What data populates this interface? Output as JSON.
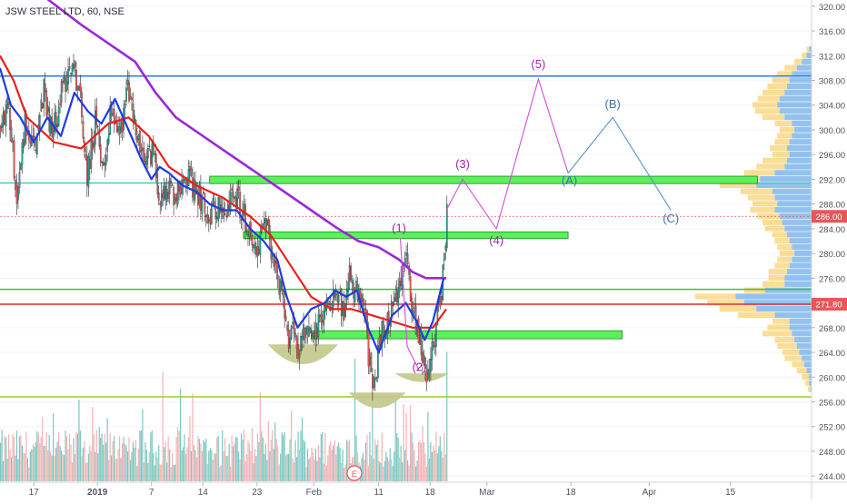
{
  "header": {
    "symbol_title": "JSW STEEL LTD, 60, NSE"
  },
  "colors": {
    "candle_up": "#26a69a",
    "candle_down": "#ef5350",
    "ma_purple": "#9c27d9",
    "ma_red": "#e8201c",
    "ma_blue": "#1e3ce0",
    "zone_fill": "#5cf05c",
    "zone_stroke": "#1a8a1a",
    "wave_magenta": "#d24fd6",
    "wave_blue": "#5a8fcf",
    "cup_fill": "#c2c88a",
    "line_blue": "#2d7bd6",
    "line_teal": "#49c9b5",
    "line_green": "#37c43a",
    "line_red": "#e03030",
    "line_lime": "#9ccc31",
    "vp_yellow": "#f6c343",
    "vp_blue": "#3b8fe0",
    "price_badge_bg": "#e8565a",
    "volume_up": "#4db6ac",
    "volume_down": "#ef9a9a"
  },
  "chart_data": {
    "type": "candlestick",
    "symbol": "JSW STEEL LTD",
    "interval": "60",
    "exchange": "NSE",
    "ylim": [
      243,
      321
    ],
    "price_axis_ticks": [
      "320.00",
      "316.00",
      "312.00",
      "308.00",
      "304.00",
      "300.00",
      "296.00",
      "292.00",
      "288.00",
      "284.00",
      "280.00",
      "276.00",
      "272.00",
      "268.00",
      "264.00",
      "260.00",
      "256.00",
      "252.00",
      "248.00",
      "244.00"
    ],
    "price_axis_values": [
      320,
      316,
      312,
      308,
      304,
      300,
      296,
      292,
      288,
      284,
      280,
      276,
      272,
      268,
      264,
      260,
      256,
      252,
      248,
      244
    ],
    "time_axis_labels": [
      "17",
      "2019",
      "7",
      "14",
      "23",
      "Feb",
      "11",
      "18",
      "Mar",
      "18",
      "Apr",
      "15"
    ],
    "time_axis_label_index": [
      25,
      72,
      112,
      150,
      190,
      232,
      280,
      318,
      360,
      422,
      480,
      540
    ],
    "visible_bar_count": 600,
    "last_bar_index": 330,
    "current_price_label": "286.00",
    "current_price": 286,
    "red_level_label": "271.80",
    "red_level": 271.8,
    "price_path": [
      [
        0,
        300
      ],
      [
        6,
        304
      ],
      [
        12,
        289
      ],
      [
        18,
        301
      ],
      [
        25,
        296
      ],
      [
        32,
        307
      ],
      [
        38,
        299
      ],
      [
        45,
        306
      ],
      [
        52,
        311
      ],
      [
        58,
        307
      ],
      [
        64,
        293
      ],
      [
        70,
        301
      ],
      [
        76,
        294
      ],
      [
        82,
        304
      ],
      [
        88,
        299
      ],
      [
        94,
        307
      ],
      [
        100,
        300
      ],
      [
        106,
        294
      ],
      [
        112,
        297
      ],
      [
        118,
        289
      ],
      [
        124,
        291
      ],
      [
        130,
        289
      ],
      [
        136,
        294
      ],
      [
        142,
        290
      ],
      [
        148,
        289
      ],
      [
        154,
        286
      ],
      [
        160,
        288
      ],
      [
        166,
        285
      ],
      [
        172,
        291
      ],
      [
        178,
        287
      ],
      [
        184,
        284
      ],
      [
        190,
        280
      ],
      [
        196,
        285
      ],
      [
        202,
        279
      ],
      [
        208,
        273
      ],
      [
        212,
        266
      ],
      [
        216,
        269
      ],
      [
        220,
        264
      ],
      [
        224,
        268
      ],
      [
        230,
        266
      ],
      [
        236,
        269
      ],
      [
        242,
        272
      ],
      [
        248,
        275
      ],
      [
        254,
        270
      ],
      [
        258,
        276
      ],
      [
        262,
        274
      ],
      [
        266,
        272
      ],
      [
        270,
        270
      ],
      [
        272,
        263
      ],
      [
        275,
        258
      ],
      [
        278,
        262
      ],
      [
        282,
        267
      ],
      [
        288,
        270
      ],
      [
        292,
        272
      ],
      [
        296,
        275
      ],
      [
        300,
        281
      ],
      [
        304,
        272
      ],
      [
        308,
        268
      ],
      [
        312,
        264
      ],
      [
        316,
        260
      ],
      [
        320,
        265
      ],
      [
        324,
        272
      ],
      [
        328,
        278
      ],
      [
        330,
        286
      ]
    ],
    "moving_averages": [
      {
        "color": "ma_purple",
        "points": [
          [
            0,
            323
          ],
          [
            30,
            322
          ],
          [
            60,
            317
          ],
          [
            80,
            314
          ],
          [
            100,
            311
          ],
          [
            115,
            306
          ],
          [
            130,
            302
          ],
          [
            150,
            299
          ],
          [
            170,
            296
          ],
          [
            190,
            293
          ],
          [
            210,
            290
          ],
          [
            230,
            287
          ],
          [
            250,
            284
          ],
          [
            265,
            282
          ],
          [
            280,
            281
          ],
          [
            295,
            279
          ],
          [
            305,
            277
          ],
          [
            315,
            276
          ],
          [
            330,
            276
          ]
        ]
      },
      {
        "color": "ma_red",
        "points": [
          [
            0,
            312
          ],
          [
            10,
            308
          ],
          [
            20,
            302
          ],
          [
            40,
            298
          ],
          [
            60,
            297
          ],
          [
            80,
            301
          ],
          [
            95,
            302
          ],
          [
            110,
            299
          ],
          [
            125,
            294
          ],
          [
            145,
            291
          ],
          [
            165,
            289
          ],
          [
            185,
            286
          ],
          [
            200,
            283
          ],
          [
            215,
            278
          ],
          [
            230,
            273
          ],
          [
            245,
            271
          ],
          [
            260,
            271
          ],
          [
            275,
            270
          ],
          [
            290,
            269
          ],
          [
            305,
            268
          ],
          [
            320,
            268
          ],
          [
            330,
            271
          ]
        ]
      },
      {
        "color": "ma_blue",
        "points": [
          [
            0,
            310
          ],
          [
            8,
            304
          ],
          [
            15,
            302
          ],
          [
            25,
            298
          ],
          [
            35,
            302
          ],
          [
            45,
            299
          ],
          [
            55,
            306
          ],
          [
            65,
            303
          ],
          [
            75,
            301
          ],
          [
            85,
            305
          ],
          [
            95,
            300
          ],
          [
            105,
            295
          ],
          [
            112,
            292
          ],
          [
            118,
            294
          ],
          [
            125,
            293
          ],
          [
            135,
            291
          ],
          [
            145,
            290
          ],
          [
            155,
            288
          ],
          [
            165,
            287
          ],
          [
            175,
            287
          ],
          [
            185,
            284
          ],
          [
            195,
            282
          ],
          [
            205,
            279
          ],
          [
            212,
            273
          ],
          [
            220,
            268
          ],
          [
            230,
            271
          ],
          [
            240,
            272
          ],
          [
            248,
            274
          ],
          [
            256,
            273
          ],
          [
            264,
            274
          ],
          [
            272,
            268
          ],
          [
            280,
            264
          ],
          [
            290,
            270
          ],
          [
            300,
            272
          ],
          [
            308,
            269
          ],
          [
            314,
            266
          ],
          [
            320,
            269
          ],
          [
            328,
            276
          ]
        ]
      }
    ],
    "horizontal_lines": [
      {
        "price": 308.7,
        "color": "line_blue"
      },
      {
        "price": 291.4,
        "color": "line_teal"
      },
      {
        "price": 274.2,
        "color": "line_green"
      },
      {
        "price": 271.8,
        "color": "line_red"
      },
      {
        "price": 256.8,
        "color": "line_lime"
      }
    ],
    "zones": [
      {
        "x_from": 155,
        "x_to": 560,
        "price_low": 291.3,
        "price_high": 292.5
      },
      {
        "x_from": 180,
        "x_to": 420,
        "price_low": 282.4,
        "price_high": 283.5
      },
      {
        "x_from": 230,
        "x_to": 460,
        "price_low": 266.2,
        "price_high": 267.5
      }
    ],
    "wave_labels_primary": [
      {
        "text": "(1)",
        "x": 295,
        "price": 283.5
      },
      {
        "text": "(2)",
        "x": 310,
        "price": 261
      },
      {
        "text": "(3)",
        "x": 342,
        "price": 293.8
      },
      {
        "text": "(4)",
        "x": 367,
        "price": 281.5
      },
      {
        "text": "(5)",
        "x": 398,
        "price": 310
      }
    ],
    "wave_labels_corrective": [
      {
        "text": "(A)",
        "x": 421,
        "price": 291.2
      },
      {
        "text": "(B)",
        "x": 453,
        "price": 303.5
      },
      {
        "text": "(C)",
        "x": 496,
        "price": 285
      }
    ],
    "wave_path_magenta": [
      [
        330,
        287
      ],
      [
        342,
        292
      ],
      [
        367,
        284
      ],
      [
        398,
        308.2
      ],
      [
        420,
        293
      ]
    ],
    "wave_path_blue": [
      [
        420,
        293
      ],
      [
        453,
        302
      ],
      [
        496,
        287
      ]
    ],
    "wave_path_2_leg": [
      [
        296,
        282.5
      ],
      [
        301,
        265
      ],
      [
        310,
        261
      ]
    ],
    "cups": [
      {
        "x_from": 198,
        "x_to": 250,
        "price_top": 265.3,
        "depth": 3.2
      },
      {
        "x_from": 258,
        "x_to": 300,
        "price_top": 257.5,
        "depth": 2.5
      },
      {
        "x_from": 292,
        "x_to": 332,
        "price_top": 260.6,
        "depth": 1.4
      }
    ],
    "earnings_marker": {
      "label": "E",
      "x": 262
    },
    "volume_profile": {
      "price_low": 257,
      "price_high": 313,
      "rows": [
        [
          258,
          0.03,
          0.01
        ],
        [
          259,
          0.05,
          0.02
        ],
        [
          260,
          0.08,
          0.02
        ],
        [
          261,
          0.12,
          0.04
        ],
        [
          262,
          0.16,
          0.06
        ],
        [
          263,
          0.22,
          0.08
        ],
        [
          264,
          0.24,
          0.1
        ],
        [
          265,
          0.28,
          0.12
        ],
        [
          266,
          0.3,
          0.14
        ],
        [
          267,
          0.4,
          0.16
        ],
        [
          268,
          0.36,
          0.18
        ],
        [
          269,
          0.32,
          0.18
        ],
        [
          270,
          0.6,
          0.3
        ],
        [
          271,
          0.75,
          0.45
        ],
        [
          272,
          0.85,
          0.55
        ],
        [
          273,
          0.95,
          0.62
        ],
        [
          274,
          0.55,
          0.38
        ],
        [
          275,
          0.4,
          0.22
        ],
        [
          276,
          0.35,
          0.22
        ],
        [
          277,
          0.35,
          0.2
        ],
        [
          278,
          0.3,
          0.18
        ],
        [
          279,
          0.28,
          0.16
        ],
        [
          280,
          0.26,
          0.14
        ],
        [
          281,
          0.28,
          0.16
        ],
        [
          282,
          0.3,
          0.18
        ],
        [
          283,
          0.32,
          0.2
        ],
        [
          284,
          0.38,
          0.22
        ],
        [
          285,
          0.4,
          0.24
        ],
        [
          286,
          0.44,
          0.26
        ],
        [
          287,
          0.5,
          0.3
        ],
        [
          288,
          0.48,
          0.28
        ],
        [
          289,
          0.52,
          0.3
        ],
        [
          290,
          0.58,
          0.32
        ],
        [
          291,
          0.75,
          0.45
        ],
        [
          292,
          0.7,
          0.42
        ],
        [
          293,
          0.55,
          0.3
        ],
        [
          294,
          0.45,
          0.22
        ],
        [
          295,
          0.4,
          0.2
        ],
        [
          296,
          0.32,
          0.18
        ],
        [
          297,
          0.34,
          0.2
        ],
        [
          298,
          0.3,
          0.18
        ],
        [
          299,
          0.28,
          0.16
        ],
        [
          300,
          0.26,
          0.14
        ],
        [
          301,
          0.3,
          0.16
        ],
        [
          302,
          0.4,
          0.22
        ],
        [
          303,
          0.46,
          0.26
        ],
        [
          304,
          0.48,
          0.28
        ],
        [
          305,
          0.44,
          0.26
        ],
        [
          306,
          0.4,
          0.22
        ],
        [
          307,
          0.36,
          0.2
        ],
        [
          308,
          0.32,
          0.18
        ],
        [
          309,
          0.28,
          0.16
        ],
        [
          310,
          0.22,
          0.12
        ],
        [
          311,
          0.14,
          0.08
        ],
        [
          312,
          0.08,
          0.04
        ],
        [
          313,
          0.04,
          0.02
        ]
      ]
    },
    "volume": {
      "max": 100,
      "spike_bars": [
        [
          58,
          60
        ],
        [
          120,
          80
        ],
        [
          133,
          68
        ],
        [
          198,
          44
        ],
        [
          262,
          90
        ],
        [
          300,
          50
        ],
        [
          330,
          95
        ]
      ]
    }
  }
}
